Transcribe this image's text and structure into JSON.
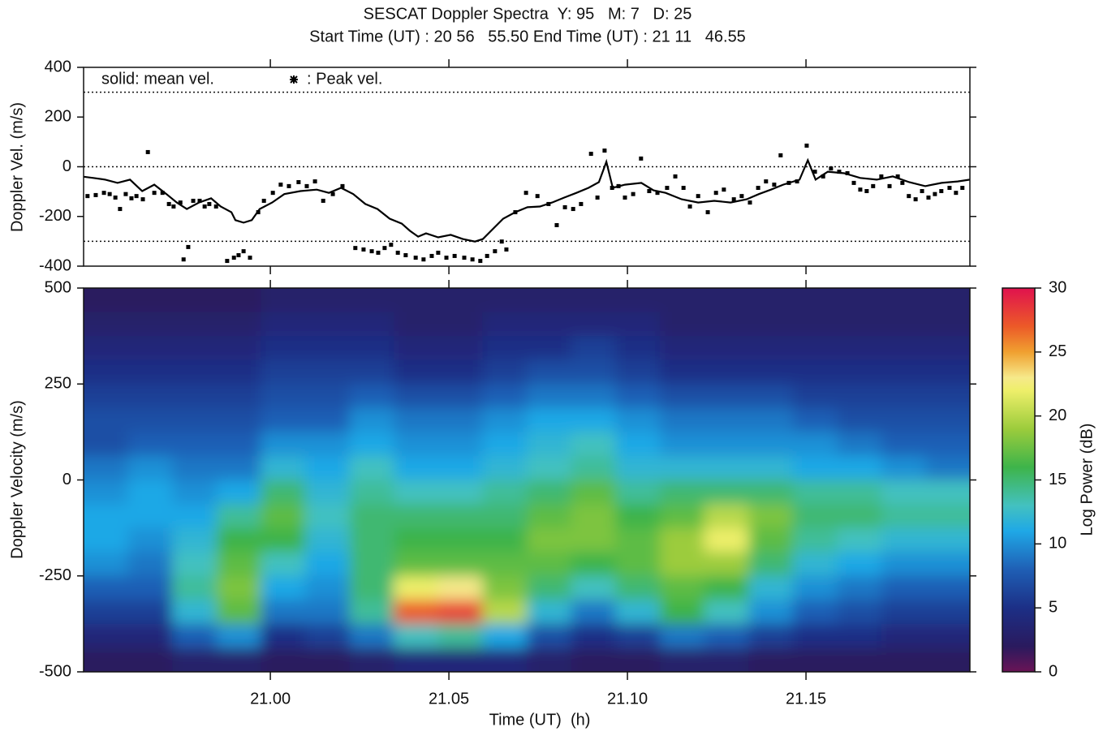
{
  "chart_data": [
    {
      "type": "line",
      "title": "SESCAT Doppler Spectra  Y: 95   M: 7   D: 25",
      "subtitle": "Start Time (UT) : 20 56   55.50 End Time (UT) : 21 11   46.55",
      "ylabel": "Doppler Vel. (m/s)",
      "xlim": [
        20.9477,
        21.1959
      ],
      "xticks": [
        21,
        21.05,
        21.1,
        21.15
      ],
      "ylim": [
        -400,
        400
      ],
      "yticks": [
        -400,
        -200,
        0,
        200,
        400
      ],
      "reference_lines": [
        -300,
        0,
        300
      ],
      "series": [
        {
          "name": "solid: mean vel.",
          "type": "line",
          "color": "#000000",
          "x": [
            20.9477,
            20.9504,
            20.9538,
            20.9572,
            20.9607,
            20.9641,
            20.9675,
            20.9709,
            20.9738,
            20.9766,
            20.98,
            20.9834,
            20.9861,
            20.9891,
            20.9902,
            20.9925,
            20.9948,
            20.997,
            21.0005,
            21.0039,
            21.0084,
            21.013,
            21.0164,
            21.0198,
            21.0232,
            21.0266,
            21.03,
            21.0334,
            21.0368,
            21.0391,
            21.0414,
            21.0436,
            21.047,
            21.0505,
            21.0539,
            21.0573,
            21.0595,
            21.0618,
            21.0652,
            21.0686,
            21.072,
            21.0755,
            21.0789,
            21.0823,
            21.0857,
            21.0891,
            21.092,
            21.0941,
            21.0959,
            21.0993,
            21.1039,
            21.1073,
            21.1107,
            21.1152,
            21.1198,
            21.1243,
            21.1289,
            21.1334,
            21.1368,
            21.1402,
            21.1436,
            21.1482,
            21.1505,
            21.1527,
            21.1561,
            21.1607,
            21.1652,
            21.1698,
            21.1743,
            21.1789,
            21.1834,
            21.188,
            21.1925,
            21.1959
          ],
          "values": [
            -40,
            -45,
            -52,
            -65,
            -52,
            -98,
            -72,
            -110,
            -144,
            -170,
            -144,
            -127,
            -160,
            -183,
            -215,
            -225,
            -215,
            -170,
            -144,
            -110,
            -98,
            -92,
            -105,
            -85,
            -110,
            -150,
            -170,
            -209,
            -229,
            -258,
            -281,
            -268,
            -284,
            -274,
            -291,
            -301,
            -291,
            -258,
            -209,
            -183,
            -163,
            -160,
            -144,
            -124,
            -105,
            -85,
            -62,
            20,
            -85,
            -72,
            -65,
            -95,
            -105,
            -131,
            -144,
            -137,
            -144,
            -131,
            -110,
            -92,
            -72,
            -52,
            26,
            -52,
            -20,
            -26,
            -45,
            -52,
            -39,
            -62,
            -78,
            -65,
            -59,
            -52
          ]
        },
        {
          "name": ": Peak vel.",
          "type": "scatter",
          "color": "#000000",
          "x": [
            20.9488,
            20.9511,
            20.9534,
            20.955,
            20.9566,
            20.9579,
            20.9595,
            20.9611,
            20.9625,
            20.9643,
            20.9657,
            20.9675,
            20.9698,
            20.9716,
            20.9729,
            20.9748,
            20.9757,
            20.977,
            20.9784,
            20.9802,
            20.9816,
            20.9829,
            20.9848,
            20.9879,
            20.9898,
            20.9911,
            20.9925,
            20.9943,
            20.9966,
            20.9982,
            21.0007,
            21.0029,
            21.0052,
            21.0079,
            21.0102,
            21.0125,
            21.0148,
            21.0175,
            21.0202,
            21.0238,
            21.0261,
            21.0284,
            21.0302,
            21.032,
            21.0338,
            21.0357,
            21.0379,
            21.0407,
            21.0429,
            21.0452,
            21.047,
            21.0493,
            21.0516,
            21.0543,
            21.0566,
            21.0588,
            21.0607,
            21.0629,
            21.0648,
            21.0661,
            21.0686,
            21.0716,
            21.0748,
            21.0779,
            21.0802,
            21.0825,
            21.0848,
            21.087,
            21.0898,
            21.0916,
            21.0936,
            21.0957,
            21.0975,
            21.0993,
            21.1016,
            21.1038,
            21.1061,
            21.1084,
            21.1111,
            21.1134,
            21.1157,
            21.1175,
            21.1198,
            21.1225,
            21.1248,
            21.127,
            21.1298,
            21.132,
            21.1343,
            21.1366,
            21.1388,
            21.1411,
            21.1429,
            21.1452,
            21.1475,
            21.1502,
            21.1525,
            21.1548,
            21.157,
            21.1593,
            21.1616,
            21.1634,
            21.1652,
            21.167,
            21.1688,
            21.1711,
            21.1734,
            21.1757,
            21.177,
            21.1788,
            21.1807,
            21.1825,
            21.1843,
            21.1861,
            21.1879,
            21.1902,
            21.192,
            21.1938
          ],
          "values": [
            -118,
            -114,
            -105,
            -110,
            -124,
            -170,
            -110,
            -127,
            -118,
            -131,
            59,
            -105,
            -105,
            -150,
            -160,
            -144,
            -373,
            -323,
            -137,
            -137,
            -160,
            -150,
            -160,
            -379,
            -366,
            -356,
            -340,
            -366,
            -183,
            -137,
            -105,
            -72,
            -78,
            -62,
            -78,
            -59,
            -137,
            -110,
            -78,
            -327,
            -333,
            -340,
            -346,
            -327,
            -314,
            -346,
            -356,
            -366,
            -373,
            -359,
            -346,
            -366,
            -359,
            -366,
            -373,
            -379,
            -359,
            -340,
            -301,
            -333,
            -183,
            -105,
            -118,
            -150,
            -235,
            -163,
            -170,
            -150,
            52,
            -124,
            65,
            -85,
            -78,
            -124,
            -110,
            33,
            -98,
            -105,
            -85,
            -39,
            -85,
            -160,
            -118,
            -183,
            -105,
            -92,
            -131,
            -118,
            -144,
            -85,
            -59,
            -72,
            46,
            -65,
            -59,
            85,
            -20,
            -39,
            -7,
            -20,
            -26,
            -65,
            -92,
            -98,
            -78,
            -39,
            -78,
            -39,
            -65,
            -118,
            -131,
            -98,
            -124,
            -110,
            -98,
            -85,
            -105,
            -85
          ]
        }
      ]
    },
    {
      "type": "heatmap",
      "xlabel": "Time (UT)  (h)",
      "ylabel": "Doppler Velocity (m/s)",
      "xlim": [
        20.9477,
        21.1959
      ],
      "xticks": [
        {
          "value": 21,
          "label": "21.00"
        },
        21.05,
        {
          "value": 21.1,
          "label": "21.10"
        },
        21.15
      ],
      "ylim": [
        -500,
        500
      ],
      "yticks": [
        -500,
        -250,
        0,
        250,
        500
      ],
      "x": [
        20.9539,
        20.9663,
        20.9787,
        20.9911,
        21.0035,
        21.016,
        21.0284,
        21.0408,
        21.0532,
        21.0656,
        21.078,
        21.0904,
        21.1029,
        21.1153,
        21.1277,
        21.1401,
        21.1525,
        21.1649,
        21.1773,
        21.1897
      ],
      "y": [
        469,
        406,
        344,
        281,
        219,
        156,
        94,
        31,
        -31,
        -94,
        -156,
        -219,
        -281,
        -344,
        -406,
        -469
      ],
      "z": [
        [
          2,
          2,
          2,
          2,
          3,
          3,
          3,
          3,
          3,
          3,
          3,
          3,
          3,
          3,
          3,
          3,
          3,
          3,
          3,
          3
        ],
        [
          3,
          3,
          3,
          3,
          4,
          4,
          4,
          3,
          3,
          4,
          4,
          4,
          4,
          3,
          3,
          3,
          3,
          3,
          3,
          3
        ],
        [
          4,
          4,
          4,
          4,
          5,
          5,
          5,
          4,
          4,
          5,
          5,
          6,
          5,
          4,
          4,
          4,
          4,
          4,
          4,
          4
        ],
        [
          5,
          5,
          5,
          5,
          6,
          6,
          6,
          5,
          5,
          6,
          7,
          7,
          6,
          5,
          5,
          5,
          5,
          5,
          5,
          5
        ],
        [
          6,
          6,
          6,
          6,
          7,
          7,
          8,
          7,
          7,
          8,
          9,
          9,
          8,
          7,
          7,
          7,
          6,
          6,
          6,
          6
        ],
        [
          7,
          7,
          7,
          7,
          8,
          8,
          10,
          9,
          9,
          10,
          11,
          11,
          10,
          9,
          9,
          9,
          8,
          7,
          7,
          7
        ],
        [
          7,
          8,
          8,
          8,
          10,
          10,
          11,
          10,
          10,
          11,
          12,
          13,
          11,
          10,
          10,
          10,
          10,
          9,
          8,
          8
        ],
        [
          9,
          10,
          9,
          9,
          12,
          11,
          13,
          11,
          11,
          12,
          13,
          14,
          12,
          12,
          12,
          12,
          11,
          11,
          10,
          9
        ],
        [
          10,
          11,
          10,
          11,
          15,
          12,
          14,
          13,
          13,
          14,
          15,
          17,
          14,
          15,
          15,
          15,
          14,
          14,
          13,
          13
        ],
        [
          11,
          11,
          11,
          14,
          17,
          13,
          15,
          15,
          15,
          15,
          17,
          18,
          16,
          17,
          20,
          18,
          15,
          15,
          14,
          14
        ],
        [
          11,
          10,
          12,
          16,
          16,
          12,
          15,
          16,
          16,
          16,
          18,
          18,
          17,
          19,
          22,
          17,
          14,
          13,
          12,
          12
        ],
        [
          10,
          9,
          13,
          17,
          13,
          11,
          15,
          17,
          17,
          17,
          17,
          16,
          17,
          19,
          19,
          15,
          12,
          11,
          10,
          10
        ],
        [
          8,
          8,
          14,
          18,
          11,
          10,
          15,
          22,
          23,
          18,
          15,
          13,
          15,
          17,
          16,
          12,
          10,
          9,
          8,
          8
        ],
        [
          6,
          6,
          12,
          17,
          9,
          9,
          14,
          27,
          28,
          20,
          12,
          9,
          12,
          16,
          13,
          10,
          8,
          7,
          6,
          6
        ],
        [
          4,
          4,
          8,
          10,
          5,
          6,
          9,
          13,
          14,
          11,
          7,
          5,
          6,
          9,
          8,
          6,
          5,
          5,
          4,
          4
        ],
        [
          2,
          2,
          3,
          3,
          2,
          2,
          3,
          4,
          4,
          4,
          3,
          2,
          2,
          3,
          3,
          2,
          2,
          2,
          2,
          2
        ]
      ],
      "colorscale": [
        [
          0,
          "#6a1456"
        ],
        [
          2,
          "#2a1a5e"
        ],
        [
          5,
          "#1c2f86"
        ],
        [
          8,
          "#1f5fb5"
        ],
        [
          11,
          "#1fa8e6"
        ],
        [
          13,
          "#43c1c0"
        ],
        [
          16,
          "#3eb44a"
        ],
        [
          19,
          "#9ccc3c"
        ],
        [
          22,
          "#eeef6a"
        ],
        [
          23,
          "#f6e98a"
        ],
        [
          25,
          "#f0a030"
        ],
        [
          27,
          "#ec5a28"
        ],
        [
          30,
          "#e0124e"
        ]
      ],
      "colorbar": {
        "label": "Log Power (dB)",
        "lim": [
          0,
          30
        ],
        "ticks": [
          0,
          5,
          10,
          15,
          20,
          25,
          30
        ]
      }
    }
  ]
}
